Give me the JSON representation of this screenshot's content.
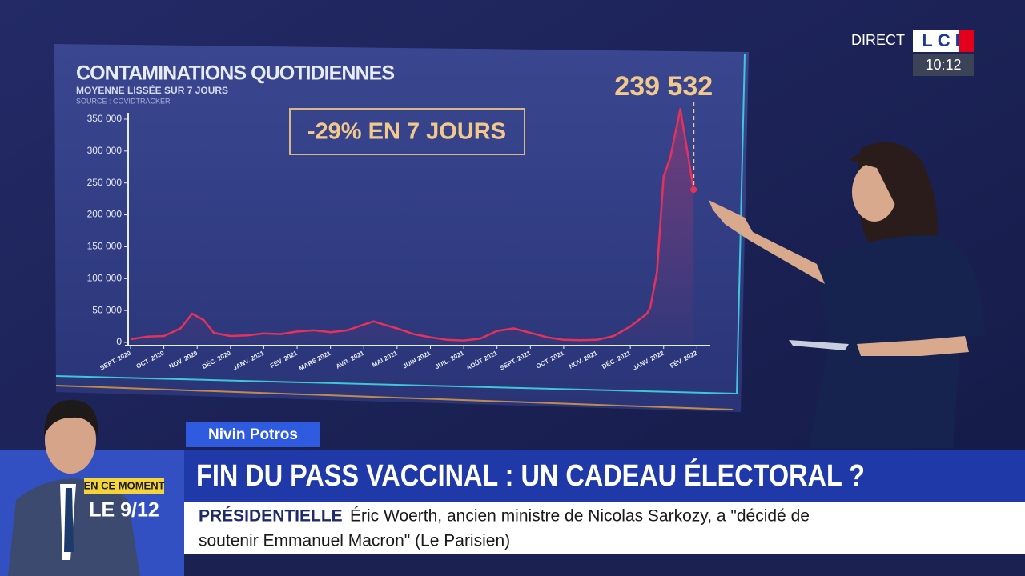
{
  "chart_data": {
    "type": "line",
    "title": "CONTAMINATIONS QUOTIDIENNES",
    "subtitle": "MOYENNE LISSÉE SUR 7 JOURS",
    "source": "SOURCE : COVIDTRACKER",
    "annotation": "-29% EN 7 JOURS",
    "x": [
      0,
      0.5,
      1,
      1.5,
      1.85,
      2.2,
      2.5,
      3,
      3.5,
      4,
      4.5,
      5,
      5.5,
      6,
      6.5,
      7,
      7.3,
      7.6,
      8,
      8.5,
      9,
      9.5,
      10,
      10.5,
      11,
      11.5,
      12,
      12.5,
      13,
      13.5,
      14,
      14.5,
      15,
      15.5,
      15.6,
      15.8,
      16,
      16.2,
      16.5,
      16.9
    ],
    "series": [
      {
        "name": "Contaminations",
        "color": "#e8315a",
        "values": [
          5000,
          9000,
          10000,
          22000,
          45000,
          35000,
          15000,
          10000,
          11000,
          14000,
          13000,
          17000,
          19000,
          16000,
          19000,
          28000,
          33000,
          28000,
          22000,
          13000,
          8000,
          4000,
          3000,
          6000,
          18000,
          22000,
          15000,
          8000,
          4000,
          3500,
          4000,
          10000,
          25000,
          45000,
          55000,
          110000,
          260000,
          290000,
          366000,
          239532
        ],
        "value_labels": [
          null,
          null,
          null,
          null,
          null,
          null,
          null,
          null,
          null,
          null,
          null,
          null,
          null,
          null,
          null,
          null,
          null,
          null,
          null,
          null,
          null,
          null,
          null,
          null,
          null,
          null,
          null,
          null,
          null,
          null,
          null,
          null,
          null,
          null,
          null,
          null,
          null,
          null,
          null,
          "239 532"
        ]
      }
    ],
    "xlim": [
      0,
      17.4
    ],
    "xticks": [
      {
        "value": 0,
        "label": "SEPT. 2020"
      },
      {
        "value": 1,
        "label": "OCT. 2020"
      },
      {
        "value": 2,
        "label": "NOV. 2020"
      },
      {
        "value": 3,
        "label": "DÉC. 2020"
      },
      {
        "value": 4,
        "label": "JANV. 2021"
      },
      {
        "value": 5,
        "label": "FÉV. 2021"
      },
      {
        "value": 6,
        "label": "MARS 2021"
      },
      {
        "value": 7,
        "label": "AVR. 2021"
      },
      {
        "value": 8,
        "label": "MAI 2021"
      },
      {
        "value": 9,
        "label": "JUIN 2021"
      },
      {
        "value": 10,
        "label": "JUIL. 2021"
      },
      {
        "value": 11,
        "label": "AOÛT 2021"
      },
      {
        "value": 12,
        "label": "SEPT. 2021"
      },
      {
        "value": 13,
        "label": "OCT. 2021"
      },
      {
        "value": 14,
        "label": "NOV. 2021"
      },
      {
        "value": 15,
        "label": "DÉC. 2021"
      },
      {
        "value": 16,
        "label": "JANV. 2022"
      },
      {
        "value": 17,
        "label": "FÉV. 2022"
      }
    ],
    "ylim": [
      0,
      360000
    ],
    "yticks": [
      0,
      {
        "value": 50000,
        "label": "50 000"
      },
      {
        "value": 100000,
        "label": "100 000"
      },
      {
        "value": 150000,
        "label": "150 000"
      },
      {
        "value": 200000,
        "label": "200 000"
      },
      {
        "value": 250000,
        "label": "250 000"
      },
      {
        "value": 300000,
        "label": "300 000"
      },
      {
        "value": 350000,
        "label": "350 000"
      }
    ],
    "grid": false
  },
  "broadcast": {
    "live": "DIRECT",
    "logo": "LCI",
    "time": "10:12",
    "presenter": "Nivin Potros",
    "headline": "FIN DU PASS VACCINAL : UN CADEAU ÉLECTORAL ?",
    "now_label": "EN CE MOMENT",
    "now_value": "LE 9/12",
    "ticker_topic": "PRÉSIDENTIELLE",
    "ticker_lines": [
      "Éric Woerth, ancien ministre de Nicolas Sarkozy, a \"décidé de",
      "soutenir Emmanuel Macron\" (Le Parisien)"
    ]
  }
}
